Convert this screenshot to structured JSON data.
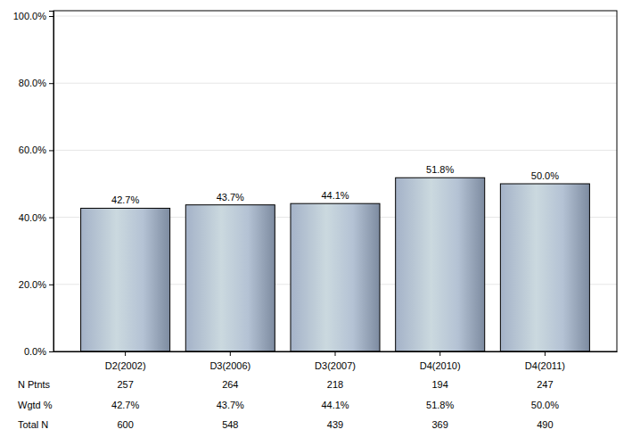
{
  "chart_data": {
    "type": "bar",
    "categories": [
      "D2(2002)",
      "D3(2006)",
      "D3(2007)",
      "D4(2010)",
      "D4(2011)"
    ],
    "values": [
      42.7,
      43.7,
      44.1,
      51.8,
      50.0
    ],
    "value_labels": [
      "42.7%",
      "43.7%",
      "44.1%",
      "51.8%",
      "50.0%"
    ],
    "ylim": [
      0,
      101.6
    ],
    "yticks": [
      {
        "value": 0,
        "label": "0.0%"
      },
      {
        "value": 20,
        "label": "20.0%"
      },
      {
        "value": 40,
        "label": "40.0%"
      },
      {
        "value": 60,
        "label": "60.0%"
      },
      {
        "value": 80,
        "label": "80.0%"
      },
      {
        "value": 100,
        "label": "100.0%"
      }
    ],
    "grid": true,
    "data_labels": true,
    "table": {
      "rows": [
        {
          "label": "N Ptnts",
          "values": [
            "257",
            "264",
            "218",
            "194",
            "247"
          ]
        },
        {
          "label": "Wgtd %",
          "values": [
            "42.7%",
            "43.7%",
            "44.1%",
            "51.8%",
            "50.0%"
          ]
        },
        {
          "label": "Total N",
          "values": [
            "600",
            "548",
            "439",
            "369",
            "490"
          ]
        }
      ]
    }
  }
}
